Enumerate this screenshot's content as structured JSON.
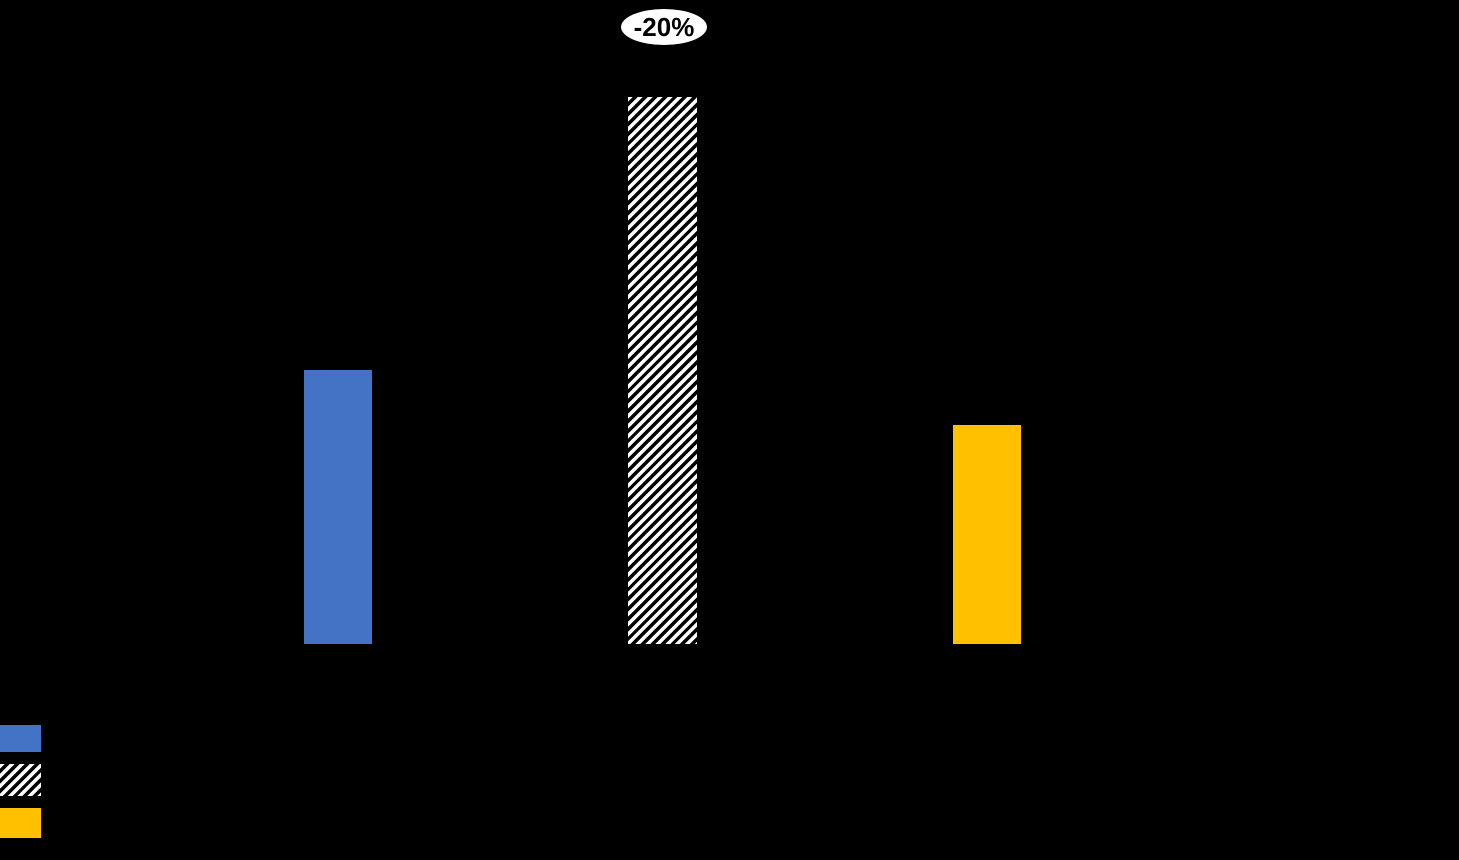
{
  "colors": {
    "background": "#000000",
    "annotation_bg": "#FFFFFF",
    "annotation_text": "#000000",
    "hatch_stripe": "#FFFFFF",
    "hatch_gap": "#000000"
  },
  "chart_data": {
    "type": "bar",
    "axes_visible": false,
    "gridlines": false,
    "annotation": {
      "text": "-20%",
      "shape": "white-ellipse",
      "position": "top-center-above-hatched-bar"
    },
    "series": [
      {
        "key": "blue",
        "pattern": "solid",
        "color": "#4472C4",
        "value_pct_of_max": 50
      },
      {
        "key": "hatched",
        "pattern": "hatch",
        "color": "#FFFFFF",
        "value_pct_of_max": 100
      },
      {
        "key": "yellow",
        "pattern": "solid",
        "color": "#FFC000",
        "value_pct_of_max": 40
      }
    ],
    "value_note": "no axis labels visible; values are bar heights relative to tallest bar = 100",
    "legend": {
      "position": "bottom-left",
      "items": [
        {
          "swatch": "blue-solid",
          "color": "#4472C4"
        },
        {
          "swatch": "white-diagonal-hatch",
          "color": "#FFFFFF"
        },
        {
          "swatch": "yellow-solid",
          "color": "#FFC000"
        }
      ]
    }
  }
}
